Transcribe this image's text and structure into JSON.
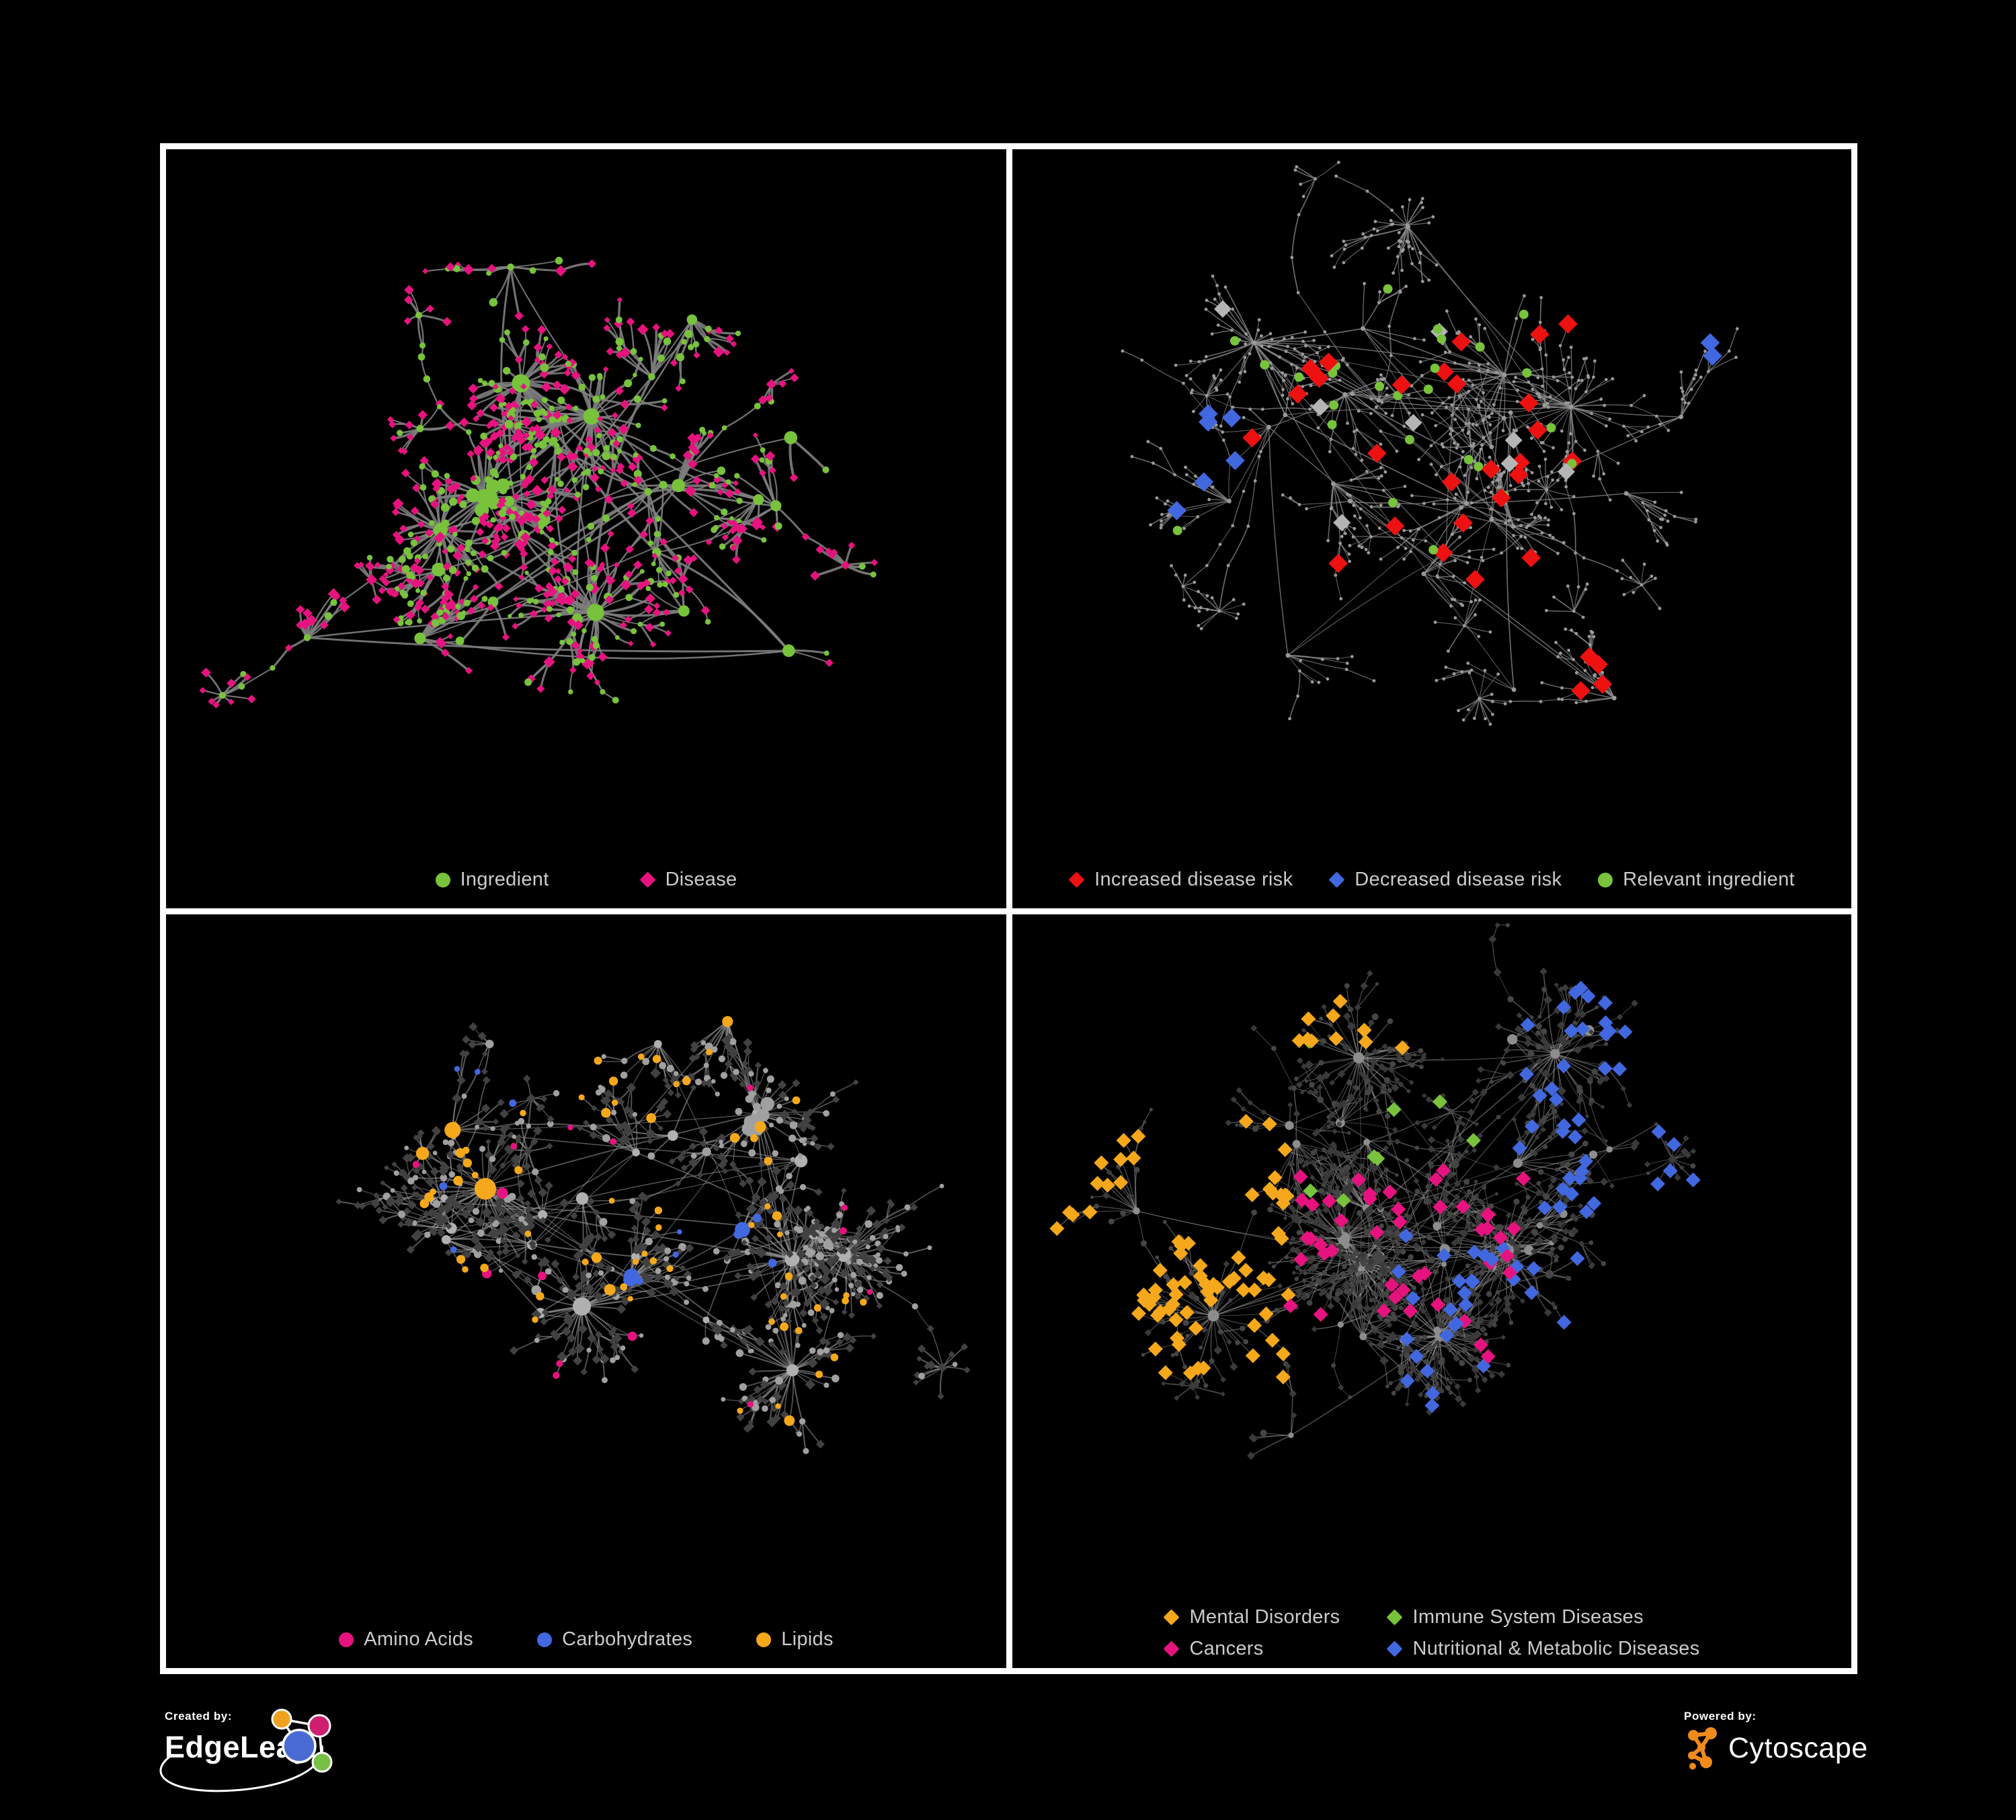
{
  "page": {
    "background": "#000000",
    "panel_border_color": "#ffffff",
    "legend_text_color": "#cbcbcb"
  },
  "palette": {
    "green": "#78c23c",
    "pink": "#e6137f",
    "red": "#ee1111",
    "blue": "#4268e0",
    "amber": "#f5a81c",
    "gray_highlight": "#b5b5b5"
  },
  "panels": [
    {
      "id": "ingredient-disease-network",
      "legend_layout": "row",
      "legend_gap": 135,
      "legend": [
        {
          "shape": "circle",
          "color": "#78c23c",
          "label": "Ingredient"
        },
        {
          "shape": "diamond",
          "color": "#e6137f",
          "label": "Disease"
        }
      ],
      "style": {
        "edgeColor": "#7e7e7e",
        "edgeWidth": 2.6,
        "edgeOpacity": 0.9,
        "curve": 0.3,
        "baseUniform": false,
        "sizeMul": 1.15,
        "nodeColors": {
          "hub": "#78c23c",
          "circle": "#78c23c",
          "diamond": "#e6137f"
        }
      },
      "gen": {
        "seed": 7,
        "hubs": 26,
        "bigHubs": 5,
        "spreadX": 0.27,
        "spreadY": 0.26,
        "maxLeaves": 13,
        "bigLeaves": 24,
        "leafDist": 58,
        "diamondFrac": 0.62,
        "twigProb": 0.34,
        "chains": 10,
        "clump": 12
      },
      "highlights": []
    },
    {
      "id": "disease-risk-network",
      "legend_layout": "row",
      "legend_gap": 54,
      "legend": [
        {
          "shape": "diamond",
          "color": "#ee1111",
          "label": "Increased disease risk"
        },
        {
          "shape": "diamond",
          "color": "#4268e0",
          "label": "Decreased disease risk"
        },
        {
          "shape": "circle",
          "color": "#78c23c",
          "label": "Relevant ingredient"
        }
      ],
      "style": {
        "edgeColor": "#8c8c8c",
        "edgeWidth": 1.2,
        "edgeOpacity": 0.75,
        "curve": 0.12,
        "baseUniform": true,
        "sizeMul": 0.7,
        "nodeColors": {
          "hub": "#9a9a9a",
          "circle": "#9a9a9a",
          "diamond": "#9a9a9a"
        }
      },
      "gen": {
        "seed": 23,
        "hubs": 30,
        "bigHubs": 3,
        "spreadX": 0.3,
        "spreadY": 0.29,
        "maxLeaves": 10,
        "bigLeaves": 22,
        "leafDist": 72,
        "diamondFrac": 0.55,
        "twigProb": 0.45,
        "chains": 16,
        "clump": 9
      },
      "highlights": [
        {
          "base": "diamond",
          "shape": "diamond",
          "color": "#ee1111",
          "size": 11,
          "count": 26,
          "region": [
            0.28,
            0.24,
            0.7,
            0.66
          ]
        },
        {
          "base": "diamond",
          "shape": "diamond",
          "color": "#ee1111",
          "size": 11,
          "count": 4,
          "region": [
            0.62,
            0.68,
            0.88,
            0.92
          ]
        },
        {
          "base": "diamond",
          "shape": "diamond",
          "color": "#4268e0",
          "size": 11,
          "count": 6,
          "region": [
            0.14,
            0.38,
            0.32,
            0.58
          ]
        },
        {
          "base": "diamond",
          "shape": "diamond",
          "color": "#4268e0",
          "size": 11,
          "count": 2,
          "region": [
            0.8,
            0.2,
            0.97,
            0.3
          ]
        },
        {
          "base": "diamond",
          "shape": "diamond",
          "color": "#b5b5b5",
          "size": 10,
          "count": 8,
          "region": [
            0.1,
            0.2,
            0.68,
            0.65
          ]
        },
        {
          "base": "circle",
          "shape": "circle",
          "color": "#78c23c",
          "size": 7,
          "count": 26,
          "region": [
            0.1,
            0.16,
            0.68,
            0.62
          ]
        }
      ]
    },
    {
      "id": "nutrient-class-network",
      "legend_layout": "row",
      "legend_gap": 95,
      "legend": [
        {
          "shape": "circle",
          "color": "#e6137f",
          "label": "Amino Acids"
        },
        {
          "shape": "circle",
          "color": "#4268e0",
          "label": "Carbohydrates"
        },
        {
          "shape": "circle",
          "color": "#f5a81c",
          "label": "Lipids"
        }
      ],
      "style": {
        "edgeColor": "#9c9c9c",
        "edgeWidth": 1.5,
        "edgeOpacity": 0.55,
        "curve": 0.18,
        "baseUniform": false,
        "sizeMul": 1.1,
        "nodeColors": {
          "hub": "#b0b0b0",
          "circle": "#a0a0a0",
          "diamond": "#414141"
        }
      },
      "gen": {
        "seed": 31,
        "hubs": 28,
        "bigHubs": 6,
        "spreadX": 0.27,
        "spreadY": 0.26,
        "maxLeaves": 14,
        "bigLeaves": 34,
        "leafDist": 60,
        "diamondFrac": 0.6,
        "twigProb": 0.36,
        "chains": 11,
        "clump": 10
      },
      "highlights": [
        {
          "base": "circle",
          "shape": "circle",
          "color": "#f5a81c",
          "size": 0,
          "count": 55,
          "region": [
            0.3,
            0.1,
            0.75,
            0.6
          ]
        },
        {
          "base": "circle",
          "shape": "circle",
          "color": "#f5a81c",
          "size": 0,
          "count": 12,
          "region": [
            0.55,
            0.55,
            0.9,
            0.88
          ]
        },
        {
          "base": "circle",
          "shape": "circle",
          "color": "#4268e0",
          "size": 0,
          "count": 10,
          "region": [
            0.55,
            0.38,
            0.74,
            0.58
          ]
        },
        {
          "base": "circle",
          "shape": "circle",
          "color": "#4268e0",
          "size": 0,
          "count": 5,
          "region": [
            0.05,
            0.05,
            0.5,
            0.5
          ]
        },
        {
          "base": "circle",
          "shape": "circle",
          "color": "#e6137f",
          "size": 0,
          "count": 15,
          "region": [
            0.03,
            0.03,
            0.97,
            0.93
          ]
        }
      ]
    },
    {
      "id": "disease-category-network",
      "legend_layout": "grid",
      "legend_gap": 70,
      "legend": [
        {
          "shape": "diamond",
          "color": "#f5a81c",
          "label": "Mental Disorders"
        },
        {
          "shape": "diamond",
          "color": "#78c23c",
          "label": "Immune System Diseases"
        },
        {
          "shape": "diamond",
          "color": "#e6137f",
          "label": "Cancers"
        },
        {
          "shape": "diamond",
          "color": "#4268e0",
          "label": "Nutritional & Metabolic Diseases"
        }
      ],
      "style": {
        "edgeColor": "#9c9c9c",
        "edgeWidth": 1.1,
        "edgeOpacity": 0.5,
        "curve": 0.15,
        "baseUniform": false,
        "sizeMul": 0.9,
        "nodeColors": {
          "hub": "#8d8d8d",
          "circle": "#454545",
          "diamond": "#3a3a3a"
        }
      },
      "gen": {
        "seed": 47,
        "hubs": 34,
        "bigHubs": 7,
        "spreadX": 0.28,
        "spreadY": 0.27,
        "maxLeaves": 16,
        "bigLeaves": 40,
        "leafDist": 62,
        "diamondFrac": 0.64,
        "twigProb": 0.4,
        "chains": 13,
        "clump": 10
      },
      "highlights": [
        {
          "base": "diamond",
          "shape": "diamond",
          "color": "#f5a81c",
          "size": 8.5,
          "count": 75,
          "region": [
            0.03,
            0.3,
            0.33,
            0.7
          ]
        },
        {
          "base": "diamond",
          "shape": "diamond",
          "color": "#f5a81c",
          "size": 8.5,
          "count": 10,
          "region": [
            0.25,
            0.03,
            0.55,
            0.2
          ]
        },
        {
          "base": "diamond",
          "shape": "diamond",
          "color": "#e6137f",
          "size": 8.5,
          "count": 45,
          "region": [
            0.32,
            0.38,
            0.62,
            0.7
          ]
        },
        {
          "base": "diamond",
          "shape": "diamond",
          "color": "#e6137f",
          "size": 8.5,
          "count": 6,
          "region": [
            0.85,
            0.2,
            0.99,
            0.34
          ]
        },
        {
          "base": "diamond",
          "shape": "diamond",
          "color": "#e6137f",
          "size": 8.5,
          "count": 6,
          "region": [
            0.4,
            0.75,
            0.7,
            0.95
          ]
        },
        {
          "base": "diamond",
          "shape": "diamond",
          "color": "#4268e0",
          "size": 8.5,
          "count": 40,
          "region": [
            0.6,
            0.05,
            0.98,
            0.45
          ]
        },
        {
          "base": "diamond",
          "shape": "diamond",
          "color": "#4268e0",
          "size": 8.5,
          "count": 30,
          "region": [
            0.45,
            0.48,
            0.97,
            0.9
          ]
        },
        {
          "base": "diamond",
          "shape": "diamond",
          "color": "#78c23c",
          "size": 8.5,
          "count": 8,
          "region": [
            0.3,
            0.12,
            0.65,
            0.55
          ]
        }
      ]
    }
  ],
  "footer": {
    "created_by": {
      "label": "Created by:",
      "brand": "EdgeLeap"
    },
    "powered_by": {
      "label": "Powered by:",
      "brand": "Cytoscape"
    },
    "edgeleap_logo_colors": {
      "blue": "#4a6bd4",
      "orange": "#f0a11e",
      "pink": "#cf1f70",
      "green": "#76c043"
    },
    "cytoscape_icon_color": "#ef8a1c"
  }
}
